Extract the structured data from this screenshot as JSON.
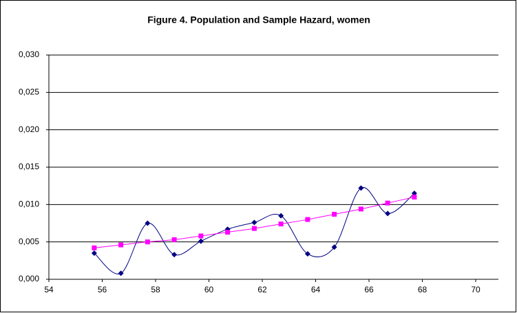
{
  "chart_data": {
    "type": "line",
    "title": "Figure 4. Population and Sample Hazard, women",
    "x": [
      55.7,
      56.7,
      57.7,
      58.7,
      59.7,
      60.7,
      61.7,
      62.7,
      63.7,
      64.7,
      65.7,
      66.7,
      67.7
    ],
    "series": [
      {
        "color": "#000080",
        "marker": "diamond",
        "values": [
          0.0035,
          0.0008,
          0.0075,
          0.0033,
          0.0051,
          0.0067,
          0.0076,
          0.0085,
          0.0034,
          0.0043,
          0.0122,
          0.0088,
          0.0115
        ]
      },
      {
        "color": "#ff00ff",
        "marker": "square",
        "values": [
          0.0042,
          0.0046,
          0.005,
          0.0053,
          0.0058,
          0.0063,
          0.0068,
          0.0074,
          0.008,
          0.0087,
          0.0094,
          0.0102,
          0.011
        ]
      }
    ],
    "smooth": true,
    "xlim": [
      54,
      70
    ],
    "xticks": [
      54,
      56,
      58,
      60,
      62,
      64,
      66,
      68,
      70
    ],
    "ylim": [
      0,
      0.03
    ],
    "yticks": [
      {
        "value": 0,
        "label": "0,000"
      },
      {
        "value": 0.005,
        "label": "0,005"
      },
      {
        "value": 0.01,
        "label": "0,010"
      },
      {
        "value": 0.015,
        "label": "0,015"
      },
      {
        "value": 0.02,
        "label": "0,020"
      },
      {
        "value": 0.025,
        "label": "0,025"
      },
      {
        "value": 0.03,
        "label": "0,030"
      }
    ],
    "grid": true
  }
}
